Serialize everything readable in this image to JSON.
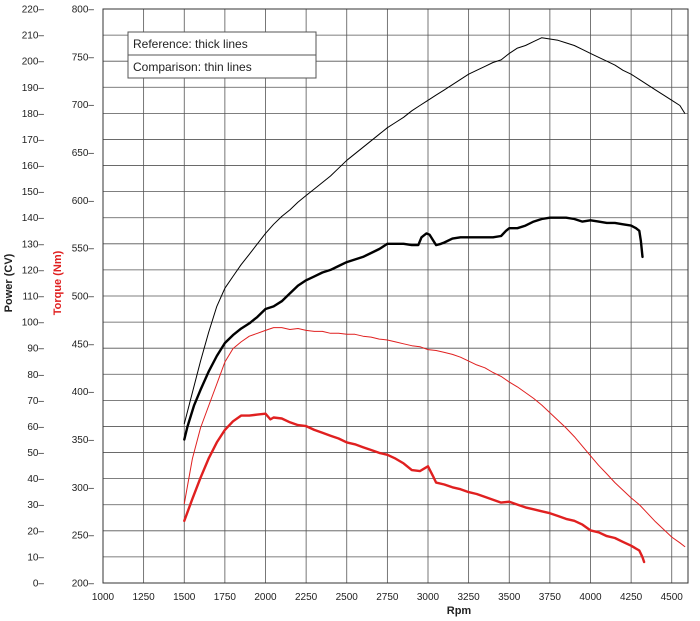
{
  "chart_data": {
    "type": "line",
    "xlabel": "Rpm",
    "ylabel_left": "Power (CV)",
    "ylabel_right": "Torque (Nm)",
    "xlim": [
      1000,
      4600
    ],
    "x_ticks": [
      "1000",
      "1250",
      "1500",
      "1750",
      "2000",
      "2250",
      "2500",
      "2750",
      "3000",
      "3250",
      "3500",
      "3750",
      "4000",
      "4250",
      "4500"
    ],
    "power_axis": {
      "ylim": [
        0,
        220
      ],
      "ticks": [
        "0",
        "10",
        "20",
        "30",
        "40",
        "50",
        "60",
        "70",
        "80",
        "90",
        "100",
        "110",
        "120",
        "130",
        "140",
        "150",
        "160",
        "170",
        "180",
        "190",
        "200",
        "210",
        "220"
      ]
    },
    "torque_axis": {
      "ylim": [
        200,
        800
      ],
      "ticks": [
        "200",
        "250",
        "300",
        "350",
        "400",
        "450",
        "500",
        "550",
        "600",
        "650",
        "700",
        "750",
        "800"
      ]
    },
    "legend": [
      "Reference: thick lines",
      "Comparison: thin lines"
    ],
    "legend_placement": "top-left",
    "grid": true,
    "colors": {
      "power": "#000000",
      "torque": "#e02020"
    },
    "series": [
      {
        "line": "thick",
        "axis": "power",
        "color": "#000000",
        "points": [
          [
            1500,
            55
          ],
          [
            1520,
            60
          ],
          [
            1560,
            68
          ],
          [
            1600,
            74
          ],
          [
            1650,
            81
          ],
          [
            1700,
            87
          ],
          [
            1750,
            92
          ],
          [
            1800,
            95
          ],
          [
            1850,
            97.5
          ],
          [
            1900,
            99.5
          ],
          [
            1950,
            102
          ],
          [
            2000,
            105
          ],
          [
            2050,
            106
          ],
          [
            2100,
            108
          ],
          [
            2150,
            111
          ],
          [
            2200,
            114
          ],
          [
            2250,
            116
          ],
          [
            2300,
            117.5
          ],
          [
            2350,
            119
          ],
          [
            2400,
            120
          ],
          [
            2450,
            121.5
          ],
          [
            2500,
            123
          ],
          [
            2550,
            124
          ],
          [
            2600,
            125
          ],
          [
            2650,
            126.5
          ],
          [
            2700,
            128
          ],
          [
            2750,
            130
          ],
          [
            2800,
            130
          ],
          [
            2850,
            130
          ],
          [
            2900,
            129.5
          ],
          [
            2940,
            129.5
          ],
          [
            2960,
            132.5
          ],
          [
            2990,
            134
          ],
          [
            3010,
            133.5
          ],
          [
            3050,
            129.5
          ],
          [
            3080,
            130
          ],
          [
            3100,
            130.5
          ],
          [
            3150,
            132
          ],
          [
            3200,
            132.5
          ],
          [
            3250,
            132.5
          ],
          [
            3300,
            132.5
          ],
          [
            3350,
            132.5
          ],
          [
            3400,
            132.5
          ],
          [
            3450,
            133
          ],
          [
            3480,
            135
          ],
          [
            3500,
            136
          ],
          [
            3550,
            136
          ],
          [
            3600,
            137
          ],
          [
            3650,
            138.5
          ],
          [
            3700,
            139.5
          ],
          [
            3750,
            140
          ],
          [
            3800,
            140
          ],
          [
            3850,
            140
          ],
          [
            3900,
            139.5
          ],
          [
            3950,
            138.5
          ],
          [
            4000,
            139
          ],
          [
            4050,
            138.5
          ],
          [
            4100,
            138
          ],
          [
            4150,
            138
          ],
          [
            4200,
            137.5
          ],
          [
            4250,
            137
          ],
          [
            4280,
            136
          ],
          [
            4300,
            135
          ],
          [
            4310,
            131
          ],
          [
            4320,
            125
          ]
        ]
      },
      {
        "line": "thin",
        "axis": "power",
        "color": "#000000",
        "points": [
          [
            1500,
            61
          ],
          [
            1550,
            73
          ],
          [
            1600,
            85
          ],
          [
            1650,
            96
          ],
          [
            1700,
            106
          ],
          [
            1750,
            113
          ],
          [
            1800,
            117.5
          ],
          [
            1850,
            122
          ],
          [
            1900,
            126
          ],
          [
            1950,
            130
          ],
          [
            2000,
            134
          ],
          [
            2050,
            137.5
          ],
          [
            2100,
            140.5
          ],
          [
            2150,
            143
          ],
          [
            2200,
            146
          ],
          [
            2250,
            148.5
          ],
          [
            2300,
            151
          ],
          [
            2350,
            153.5
          ],
          [
            2400,
            156
          ],
          [
            2450,
            159
          ],
          [
            2500,
            162
          ],
          [
            2550,
            164.5
          ],
          [
            2600,
            167
          ],
          [
            2650,
            169.5
          ],
          [
            2700,
            172
          ],
          [
            2750,
            174.5
          ],
          [
            2800,
            176.5
          ],
          [
            2850,
            178.5
          ],
          [
            2900,
            181
          ],
          [
            2950,
            183
          ],
          [
            3000,
            185
          ],
          [
            3050,
            187
          ],
          [
            3100,
            189
          ],
          [
            3150,
            191
          ],
          [
            3200,
            193
          ],
          [
            3250,
            195
          ],
          [
            3300,
            196.5
          ],
          [
            3350,
            198
          ],
          [
            3400,
            199.5
          ],
          [
            3450,
            200.5
          ],
          [
            3500,
            203
          ],
          [
            3550,
            205
          ],
          [
            3600,
            206
          ],
          [
            3650,
            207.5
          ],
          [
            3700,
            209
          ],
          [
            3750,
            208.5
          ],
          [
            3800,
            208
          ],
          [
            3850,
            207
          ],
          [
            3900,
            206
          ],
          [
            3950,
            204.5
          ],
          [
            4000,
            203
          ],
          [
            4050,
            201.5
          ],
          [
            4100,
            200
          ],
          [
            4150,
            198.5
          ],
          [
            4200,
            196.5
          ],
          [
            4250,
            195
          ],
          [
            4300,
            193
          ],
          [
            4350,
            191
          ],
          [
            4400,
            189
          ],
          [
            4450,
            187
          ],
          [
            4500,
            185
          ],
          [
            4550,
            183
          ],
          [
            4580,
            180
          ]
        ]
      },
      {
        "line": "thick",
        "axis": "torque",
        "color": "#e02020",
        "points": [
          [
            1500,
            265
          ],
          [
            1550,
            288
          ],
          [
            1600,
            310
          ],
          [
            1650,
            330
          ],
          [
            1700,
            347
          ],
          [
            1750,
            360
          ],
          [
            1800,
            369
          ],
          [
            1850,
            375
          ],
          [
            1900,
            375
          ],
          [
            1950,
            376
          ],
          [
            2000,
            377
          ],
          [
            2030,
            371
          ],
          [
            2050,
            373
          ],
          [
            2100,
            372
          ],
          [
            2150,
            368
          ],
          [
            2200,
            365
          ],
          [
            2250,
            364
          ],
          [
            2300,
            360
          ],
          [
            2350,
            357
          ],
          [
            2400,
            354
          ],
          [
            2450,
            351
          ],
          [
            2500,
            347
          ],
          [
            2550,
            345
          ],
          [
            2600,
            342
          ],
          [
            2650,
            339
          ],
          [
            2700,
            336
          ],
          [
            2750,
            334
          ],
          [
            2800,
            330
          ],
          [
            2850,
            325
          ],
          [
            2900,
            318
          ],
          [
            2950,
            317
          ],
          [
            2980,
            320
          ],
          [
            3000,
            322
          ],
          [
            3030,
            312
          ],
          [
            3050,
            305
          ],
          [
            3100,
            303
          ],
          [
            3150,
            300
          ],
          [
            3200,
            298
          ],
          [
            3250,
            295
          ],
          [
            3300,
            293
          ],
          [
            3350,
            290
          ],
          [
            3400,
            287
          ],
          [
            3450,
            284
          ],
          [
            3500,
            285
          ],
          [
            3550,
            282
          ],
          [
            3600,
            279
          ],
          [
            3650,
            277
          ],
          [
            3700,
            275
          ],
          [
            3750,
            273
          ],
          [
            3800,
            270
          ],
          [
            3850,
            267
          ],
          [
            3900,
            265
          ],
          [
            3950,
            261
          ],
          [
            4000,
            255
          ],
          [
            4050,
            253
          ],
          [
            4100,
            249
          ],
          [
            4150,
            247
          ],
          [
            4200,
            243
          ],
          [
            4250,
            239
          ],
          [
            4300,
            234
          ],
          [
            4320,
            227
          ],
          [
            4330,
            222
          ]
        ]
      },
      {
        "line": "thin",
        "axis": "torque",
        "color": "#e02020",
        "points": [
          [
            1500,
            283
          ],
          [
            1550,
            330
          ],
          [
            1600,
            362
          ],
          [
            1650,
            385
          ],
          [
            1700,
            408
          ],
          [
            1750,
            431
          ],
          [
            1800,
            445
          ],
          [
            1850,
            452
          ],
          [
            1900,
            458
          ],
          [
            1950,
            461
          ],
          [
            2000,
            464
          ],
          [
            2050,
            467
          ],
          [
            2100,
            467
          ],
          [
            2150,
            465
          ],
          [
            2200,
            466
          ],
          [
            2250,
            464
          ],
          [
            2300,
            463
          ],
          [
            2350,
            463
          ],
          [
            2400,
            461
          ],
          [
            2450,
            461
          ],
          [
            2500,
            460
          ],
          [
            2550,
            460
          ],
          [
            2600,
            458
          ],
          [
            2650,
            457
          ],
          [
            2700,
            455
          ],
          [
            2750,
            454
          ],
          [
            2800,
            452
          ],
          [
            2850,
            450
          ],
          [
            2900,
            448
          ],
          [
            2950,
            447
          ],
          [
            3000,
            444
          ],
          [
            3050,
            443
          ],
          [
            3100,
            441
          ],
          [
            3150,
            439
          ],
          [
            3200,
            436
          ],
          [
            3250,
            432
          ],
          [
            3300,
            428
          ],
          [
            3350,
            425
          ],
          [
            3400,
            420
          ],
          [
            3450,
            416
          ],
          [
            3500,
            410
          ],
          [
            3550,
            405
          ],
          [
            3600,
            399
          ],
          [
            3650,
            393
          ],
          [
            3700,
            386
          ],
          [
            3750,
            378
          ],
          [
            3800,
            370
          ],
          [
            3850,
            362
          ],
          [
            3900,
            353
          ],
          [
            3950,
            343
          ],
          [
            4000,
            333
          ],
          [
            4050,
            323
          ],
          [
            4100,
            314
          ],
          [
            4150,
            305
          ],
          [
            4200,
            297
          ],
          [
            4250,
            289
          ],
          [
            4300,
            282
          ],
          [
            4350,
            273
          ],
          [
            4400,
            264
          ],
          [
            4450,
            256
          ],
          [
            4500,
            248
          ],
          [
            4550,
            242
          ],
          [
            4580,
            238
          ]
        ]
      }
    ]
  }
}
